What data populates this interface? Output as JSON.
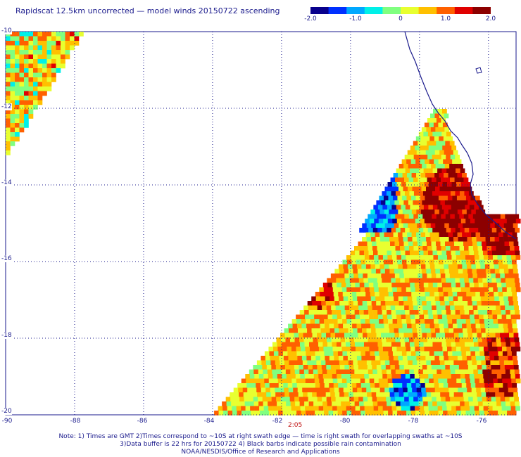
{
  "title": "Rapidscat 12.5km uncorrected — model winds 20150722 ascending",
  "colorbar": {
    "ticks": [
      "-2.0",
      "-1.0",
      "0",
      "1.0",
      "2.0"
    ],
    "tick_values": [
      -2.0,
      -1.0,
      0,
      1.0,
      2.0
    ],
    "colors": [
      "#08008c",
      "#0030ff",
      "#00a8ff",
      "#00f0e8",
      "#80ff80",
      "#e8ff30",
      "#ffc000",
      "#ff6000",
      "#e00000",
      "#8c0000"
    ]
  },
  "map": {
    "lon_range": [
      -90,
      -75.2
    ],
    "lat_range": [
      -20,
      -10
    ],
    "lon_labels": [
      "-90",
      "-88",
      "-86",
      "-84",
      "-82",
      "-80",
      "-78",
      "-76"
    ],
    "lon_values": [
      -90,
      -88,
      -86,
      -84,
      -82,
      -80,
      -78,
      -76
    ],
    "lat_labels": [
      "-10",
      "-12",
      "-14",
      "-16",
      "-18",
      "-20"
    ],
    "lat_values": [
      -10,
      -12,
      -14,
      -16,
      -18,
      -20
    ],
    "gridlines": "dotted",
    "coastline": "Peru"
  },
  "swath_time": "2:05",
  "notes": {
    "line1": "Note: 1) Times are GMT 2)Times correspond to ~10S at right swath edge — time is right swath for overlapping swaths at ~10S",
    "line2": "3)Data buffer is 22 hrs for 20150722 4) Black barbs indicate possible rain contamination",
    "line3": "NOAA/NESDIS/Office of Research and Applications"
  }
}
